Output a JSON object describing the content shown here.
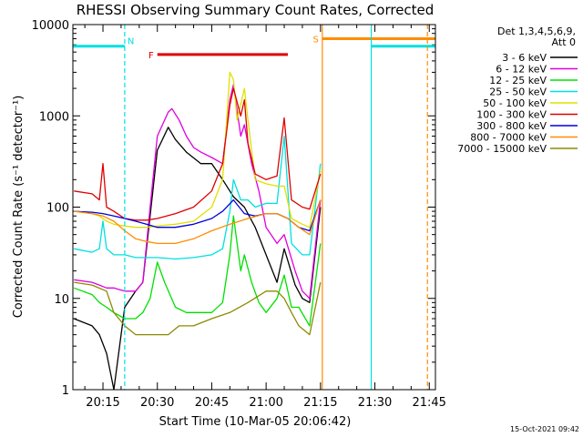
{
  "chart_data": {
    "type": "line",
    "title": "RHESSI Observing Summary Count Rates, Corrected",
    "xlabel": "Start Time (10-Mar-05 20:06:42)",
    "ylabel": "Corrected Count Rate (s⁻¹ detector⁻¹)",
    "x_unit": "minutes after 20:00 UT",
    "xlim": [
      6.7,
      106.7
    ],
    "ylim": [
      1,
      10000
    ],
    "y_scale": "log",
    "x_ticks": [
      {
        "value": 15,
        "label": "20:15"
      },
      {
        "value": 30,
        "label": "20:30"
      },
      {
        "value": 45,
        "label": "20:45"
      },
      {
        "value": 60,
        "label": "21:00"
      },
      {
        "value": 75,
        "label": "21:15"
      },
      {
        "value": 90,
        "label": "21:30"
      },
      {
        "value": 105,
        "label": "21:45"
      }
    ],
    "y_ticks": [
      {
        "value": 1,
        "label": "1"
      },
      {
        "value": 10,
        "label": "10"
      },
      {
        "value": 100,
        "label": "100"
      },
      {
        "value": 1000,
        "label": "1000"
      },
      {
        "value": 10000,
        "label": "10000"
      }
    ],
    "legend_header": [
      "Det 1,3,4,5,6,9,",
      "Att 0"
    ],
    "legend_position": "right-outside",
    "series": [
      {
        "name": "3 - 6 keV",
        "color": "#000000",
        "x": [
          7,
          12,
          14,
          16,
          18,
          21,
          24,
          26,
          30,
          33,
          35,
          38,
          42,
          45,
          48,
          51,
          54,
          57,
          60,
          63,
          65,
          68,
          70,
          72,
          75
        ],
        "y": [
          6,
          5,
          4,
          2.5,
          1,
          8,
          12,
          15,
          420,
          750,
          550,
          400,
          300,
          300,
          200,
          130,
          100,
          60,
          30,
          15,
          35,
          14,
          10,
          9,
          100
        ]
      },
      {
        "name": "6 - 12 keV",
        "color": "#e000e0",
        "x": [
          7,
          12,
          14,
          16,
          18,
          21,
          24,
          26,
          28,
          30,
          33,
          34,
          36,
          38,
          40,
          42,
          45,
          48,
          50,
          51,
          53,
          54,
          56,
          58,
          60,
          63,
          65,
          68,
          70,
          72,
          75
        ],
        "y": [
          16,
          15,
          14,
          13,
          13,
          12,
          12,
          15,
          100,
          600,
          1100,
          1200,
          900,
          600,
          450,
          400,
          350,
          300,
          1500,
          2200,
          600,
          800,
          300,
          150,
          60,
          40,
          50,
          20,
          12,
          10,
          120
        ]
      },
      {
        "name": "12 - 25 keV",
        "color": "#00e000",
        "x": [
          7,
          12,
          14,
          16,
          18,
          21,
          24,
          26,
          28,
          30,
          32,
          35,
          38,
          42,
          45,
          48,
          50,
          51,
          52,
          53,
          54,
          56,
          58,
          60,
          63,
          65,
          67,
          69,
          72,
          75
        ],
        "y": [
          13,
          11,
          9,
          8,
          7,
          6,
          6,
          7,
          10,
          25,
          15,
          8,
          7,
          7,
          7,
          9,
          30,
          80,
          40,
          20,
          30,
          15,
          9,
          7,
          10,
          18,
          8,
          8,
          5,
          40
        ]
      },
      {
        "name": "25 - 50 keV",
        "color": "#00e0e0",
        "x": [
          7,
          12,
          14,
          15,
          16,
          18,
          21,
          24,
          27,
          30,
          35,
          40,
          45,
          48,
          50,
          51,
          53,
          55,
          57,
          60,
          63,
          65,
          67,
          70,
          72,
          75
        ],
        "y": [
          35,
          32,
          35,
          70,
          35,
          30,
          30,
          28,
          28,
          28,
          27,
          28,
          30,
          35,
          90,
          200,
          120,
          120,
          100,
          110,
          110,
          600,
          40,
          30,
          30,
          300
        ]
      },
      {
        "name": "50 - 100 keV",
        "color": "#e0e000",
        "x": [
          7,
          12,
          14,
          16,
          18,
          21,
          24,
          27,
          30,
          35,
          40,
          45,
          48,
          50,
          51,
          52,
          54,
          55,
          57,
          60,
          63,
          65,
          67,
          70,
          72,
          75
        ],
        "y": [
          90,
          85,
          80,
          70,
          65,
          62,
          60,
          60,
          62,
          65,
          70,
          100,
          200,
          3000,
          2500,
          900,
          2000,
          900,
          200,
          180,
          170,
          170,
          75,
          65,
          60,
          250
        ]
      },
      {
        "name": "100 - 300 keV",
        "color": "#e00000",
        "x": [
          7,
          12,
          14,
          15,
          16,
          18,
          21,
          24,
          27,
          30,
          35,
          40,
          45,
          48,
          50,
          51,
          53,
          54,
          55,
          57,
          60,
          63,
          65,
          67,
          70,
          72,
          75
        ],
        "y": [
          150,
          140,
          120,
          300,
          100,
          90,
          75,
          72,
          72,
          75,
          85,
          100,
          150,
          300,
          1300,
          2000,
          1000,
          1500,
          500,
          230,
          200,
          220,
          950,
          120,
          100,
          95,
          230
        ]
      },
      {
        "name": "300 - 800 keV",
        "color": "#0000e0",
        "x": [
          7,
          12,
          15,
          18,
          21,
          24,
          27,
          30,
          35,
          40,
          45,
          48,
          51,
          54,
          57,
          60,
          63,
          66,
          69,
          72,
          75
        ],
        "y": [
          90,
          88,
          85,
          80,
          75,
          70,
          65,
          60,
          60,
          65,
          75,
          90,
          120,
          85,
          80,
          85,
          85,
          75,
          60,
          55,
          120
        ]
      },
      {
        "name": "800 - 7000 keV",
        "color": "#ff8c00",
        "x": [
          7,
          12,
          15,
          18,
          21,
          24,
          27,
          30,
          35,
          40,
          45,
          50,
          55,
          60,
          63,
          66,
          69,
          72,
          75
        ],
        "y": [
          90,
          85,
          80,
          70,
          55,
          45,
          42,
          40,
          40,
          45,
          55,
          65,
          75,
          85,
          85,
          75,
          60,
          50,
          120
        ]
      },
      {
        "name": "7000 - 15000 keV",
        "color": "#8b8b00",
        "x": [
          7,
          12,
          16,
          18,
          21,
          24,
          27,
          30,
          33,
          36,
          40,
          45,
          50,
          55,
          60,
          63,
          65,
          67,
          69,
          72,
          75
        ],
        "y": [
          15,
          14,
          12,
          7,
          5,
          4,
          4,
          4,
          4,
          5,
          5,
          6,
          7,
          9,
          12,
          12,
          10,
          7,
          5,
          4,
          15
        ]
      }
    ],
    "annotations": [
      {
        "kind": "flag-bar",
        "label": "N",
        "color": "#00e0e0",
        "x_start": 6.7,
        "x_end": 21,
        "y": 5800
      },
      {
        "kind": "flag-bar",
        "label": "F",
        "color": "#e00000",
        "x_start": 30,
        "x_end": 66,
        "y": 4700
      },
      {
        "kind": "flag-bar",
        "label": "S",
        "color": "#ff8c00",
        "x_start": 75.5,
        "x_end": 106.7,
        "y": 7000
      },
      {
        "kind": "flag-bar",
        "label": "",
        "color": "#00e0e0",
        "x_start": 89,
        "x_end": 106.7,
        "y": 5800
      },
      {
        "kind": "vline",
        "color": "#00e0e0",
        "x": 21,
        "style": "dashed"
      },
      {
        "kind": "vline",
        "color": "#00e0e0",
        "x": 89,
        "style": "solid"
      },
      {
        "kind": "vline",
        "color": "#ff8c00",
        "x": 75.5,
        "style": "solid"
      },
      {
        "kind": "vline",
        "color": "#ff8c00",
        "x": 104.5,
        "style": "dashed"
      }
    ],
    "grid": false
  },
  "footer_stamp": "15-Oct-2021 09:42"
}
